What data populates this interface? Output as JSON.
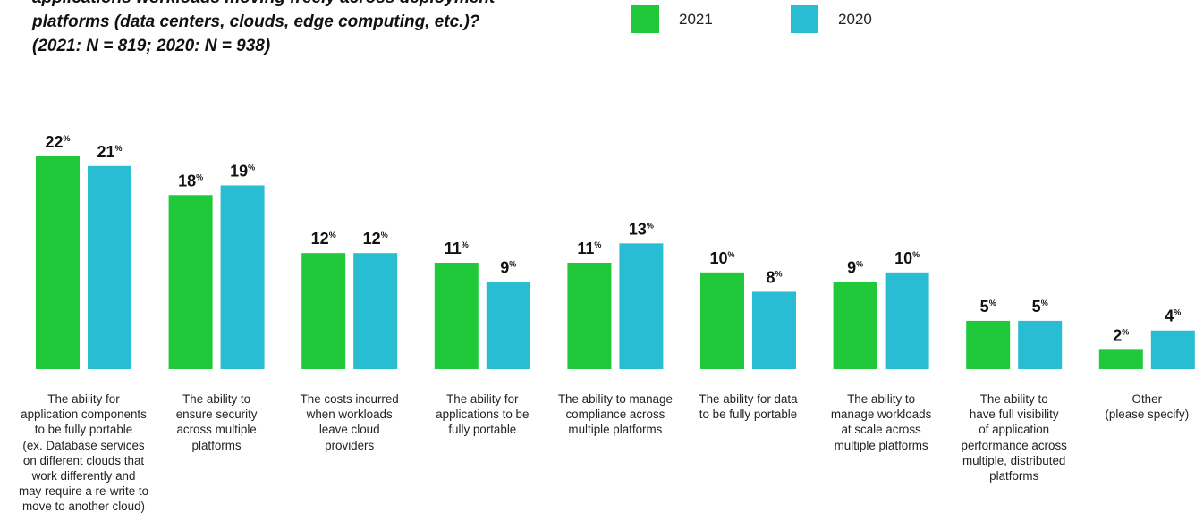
{
  "question_lines": [
    "applications workloads moving freely across deployment",
    "platforms (data centers, clouds, edge computing, etc.)?",
    "(2021: N = 819; 2020: N = 938)"
  ],
  "legend": [
    {
      "label": "2021",
      "color": "#1fc93a"
    },
    {
      "label": "2020",
      "color": "#29bdd3"
    }
  ],
  "chart_data": {
    "type": "bar",
    "value_suffix": "%",
    "ylim": [
      0,
      22
    ],
    "categories": [
      [
        "The ability for",
        "application components",
        "to be fully portable",
        "(ex. Database services",
        "on different clouds that",
        "work differently and",
        "may require a re-write to",
        "move to another cloud)"
      ],
      [
        "The ability to",
        "ensure security",
        "across multiple",
        "platforms"
      ],
      [
        "The costs incurred",
        "when workloads",
        "leave cloud",
        "providers"
      ],
      [
        "The ability for",
        "applications to be",
        "fully portable"
      ],
      [
        "The ability to manage",
        "compliance across",
        "multiple platforms"
      ],
      [
        "The ability for data",
        "to be fully portable"
      ],
      [
        "The ability to",
        "manage workloads",
        "at scale across",
        "multiple platforms"
      ],
      [
        "The ability to",
        "have full visibility",
        "of application",
        "performance across",
        "multiple, distributed",
        "platforms"
      ],
      [
        "Other",
        "(please specify)"
      ]
    ],
    "series": [
      {
        "name": "2021",
        "color": "#1fc93a",
        "values": [
          22,
          18,
          12,
          11,
          11,
          10,
          9,
          5,
          2
        ]
      },
      {
        "name": "2020",
        "color": "#29bdd3",
        "values": [
          21,
          19,
          12,
          9,
          13,
          8,
          10,
          5,
          4
        ]
      }
    ]
  }
}
